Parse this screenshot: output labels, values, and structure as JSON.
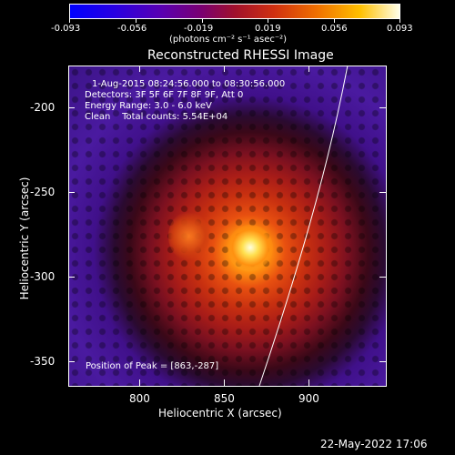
{
  "colorbar": {
    "ticks": [
      "-0.093",
      "-0.056",
      "-0.019",
      "0.019",
      "0.056",
      "0.093"
    ],
    "unit_label": "(photons cm⁻² s⁻¹ asec⁻²)"
  },
  "plot": {
    "title": "Reconstructed RHESSI Image",
    "info_lines": [
      "1-Aug-2015 08:24:56.000 to 08:30:56.000",
      "Detectors: 3F 5F 6F 7F 8F 9F, Att 0",
      "Energy Range: 3.0 - 6.0 keV",
      "Clean    Total counts: 5.54E+04"
    ],
    "peak_label": "Position of Peak = [863,-287]",
    "x_axis": {
      "label": "Heliocentric X (arcsec)",
      "ticks": [
        "800",
        "850",
        "900"
      ]
    },
    "y_axis": {
      "label": "Heliocentric Y (arcsec)",
      "ticks": [
        "-200",
        "-250",
        "-300",
        "-350"
      ]
    }
  },
  "footer": {
    "timestamp": "22-May-2022 17:06"
  },
  "colors": {
    "background": "#000000",
    "limb": "#ffffff"
  }
}
